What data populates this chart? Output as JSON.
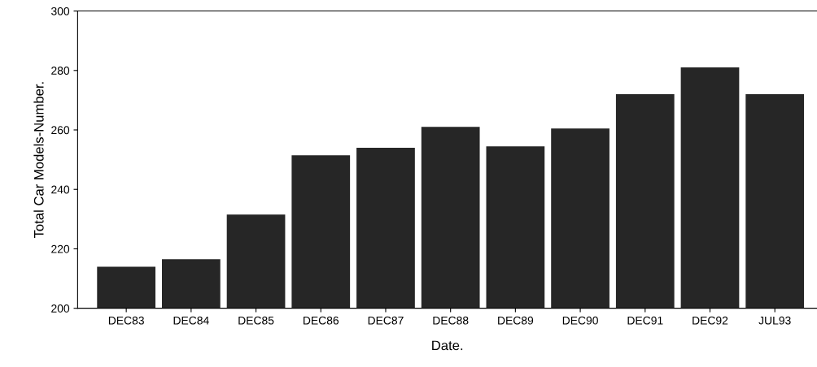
{
  "chart_data": {
    "type": "bar",
    "xlabel": "Date.",
    "ylabel": "Total Car Models-Number.",
    "categories": [
      "DEC83",
      "DEC84",
      "DEC85",
      "DEC86",
      "DEC87",
      "DEC88",
      "DEC89",
      "DEC90",
      "DEC91",
      "DEC92",
      "JUL93"
    ],
    "values": [
      214,
      216.5,
      231.5,
      251.5,
      254,
      261,
      254.5,
      260.5,
      272,
      281,
      272
    ],
    "color": "#262626",
    "ylim": [
      200,
      300
    ],
    "yticks": [
      200,
      220,
      240,
      260,
      280,
      300
    ],
    "grid": false,
    "legend": false
  }
}
